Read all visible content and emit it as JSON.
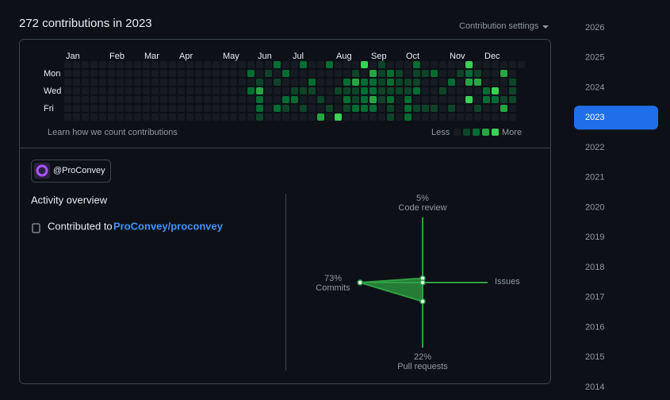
{
  "header": {
    "title": "272 contributions in 2023",
    "settings": "Contribution settings"
  },
  "contributions": {
    "months": [
      "Jan",
      "Feb",
      "Mar",
      "Apr",
      "May",
      "Jun",
      "Jul",
      "Aug",
      "Sep",
      "Oct",
      "Nov",
      "Dec"
    ],
    "days": [
      null,
      "Mon",
      null,
      "Wed",
      null,
      "Fri",
      null
    ],
    "level_colors": [
      "#161b22",
      "#0e4429",
      "#006d32",
      "#26a641",
      "#39d353"
    ],
    "levels": [
      [
        0,
        0,
        0,
        0,
        0,
        0,
        0,
        0,
        0,
        0,
        0,
        0,
        0,
        0,
        0,
        0,
        0,
        0,
        0,
        0,
        0,
        0,
        0,
        0,
        2,
        0,
        0,
        2,
        0,
        0,
        2,
        0,
        0,
        0,
        4,
        0,
        1,
        0,
        0,
        0,
        2,
        0,
        0,
        0,
        0,
        0,
        4,
        0,
        0,
        0,
        0,
        0,
        0
      ],
      [
        0,
        0,
        0,
        0,
        0,
        0,
        0,
        0,
        0,
        0,
        0,
        0,
        0,
        0,
        0,
        0,
        0,
        0,
        0,
        0,
        0,
        2,
        0,
        1,
        0,
        2,
        0,
        0,
        0,
        0,
        0,
        0,
        0,
        1,
        0,
        3,
        1,
        2,
        1,
        0,
        1,
        1,
        2,
        0,
        0,
        1,
        2,
        1,
        0,
        0,
        3,
        0,
        null
      ],
      [
        0,
        0,
        0,
        0,
        0,
        0,
        0,
        0,
        0,
        0,
        0,
        0,
        0,
        0,
        0,
        0,
        0,
        0,
        0,
        0,
        0,
        0,
        1,
        0,
        1,
        0,
        0,
        0,
        2,
        0,
        0,
        0,
        2,
        3,
        2,
        2,
        1,
        2,
        1,
        1,
        1,
        0,
        0,
        0,
        2,
        0,
        3,
        3,
        0,
        0,
        0,
        1,
        null
      ],
      [
        0,
        0,
        0,
        0,
        0,
        0,
        0,
        0,
        0,
        0,
        0,
        0,
        0,
        0,
        0,
        0,
        0,
        0,
        0,
        0,
        0,
        2,
        3,
        0,
        0,
        0,
        1,
        1,
        1,
        0,
        0,
        1,
        1,
        1,
        2,
        2,
        1,
        1,
        1,
        1,
        2,
        0,
        0,
        1,
        0,
        0,
        0,
        0,
        2,
        4,
        0,
        1,
        null
      ],
      [
        0,
        0,
        0,
        0,
        0,
        0,
        0,
        0,
        0,
        0,
        0,
        0,
        0,
        0,
        0,
        0,
        0,
        0,
        0,
        0,
        0,
        0,
        2,
        0,
        0,
        2,
        2,
        0,
        0,
        1,
        0,
        0,
        2,
        1,
        2,
        3,
        1,
        2,
        0,
        2,
        0,
        0,
        0,
        0,
        0,
        0,
        4,
        0,
        2,
        2,
        1,
        1,
        null
      ],
      [
        0,
        0,
        0,
        0,
        0,
        0,
        0,
        0,
        0,
        0,
        0,
        0,
        0,
        0,
        0,
        0,
        0,
        0,
        0,
        0,
        0,
        0,
        2,
        0,
        2,
        1,
        0,
        1,
        0,
        0,
        1,
        0,
        1,
        2,
        2,
        2,
        0,
        1,
        0,
        2,
        1,
        1,
        1,
        0,
        1,
        0,
        0,
        1,
        0,
        0,
        3,
        0,
        null
      ],
      [
        0,
        0,
        0,
        0,
        0,
        0,
        0,
        0,
        0,
        0,
        0,
        0,
        0,
        0,
        0,
        0,
        0,
        0,
        0,
        0,
        0,
        0,
        1,
        0,
        0,
        0,
        0,
        0,
        0,
        3,
        0,
        4,
        0,
        0,
        0,
        0,
        0,
        1,
        0,
        2,
        0,
        0,
        0,
        0,
        0,
        0,
        0,
        0,
        0,
        0,
        0,
        0,
        null
      ]
    ],
    "learn_link": "Learn how we count contributions",
    "legend_less": "Less",
    "legend_levels": [
      0,
      1,
      2,
      3,
      4
    ],
    "legend_more": "More"
  },
  "organization": "@ProConvey",
  "activity": {
    "title": "Activity overview",
    "contributed_to": "Contributed to",
    "repo": "ProConvey/proconvey",
    "axes": [
      "Code review",
      "Issues",
      "Pull requests",
      "Commits"
    ],
    "values": [
      5,
      0,
      22,
      73
    ],
    "value_labels": [
      "5%",
      null,
      "22%",
      "73%"
    ],
    "color": "#2ea043"
  },
  "years": {
    "list": [
      "2026",
      "2025",
      "2024",
      "2023",
      "2022",
      "2021",
      "2020",
      "2019",
      "2018",
      "2017",
      "2016",
      "2015",
      "2014"
    ],
    "selected": "2023"
  }
}
